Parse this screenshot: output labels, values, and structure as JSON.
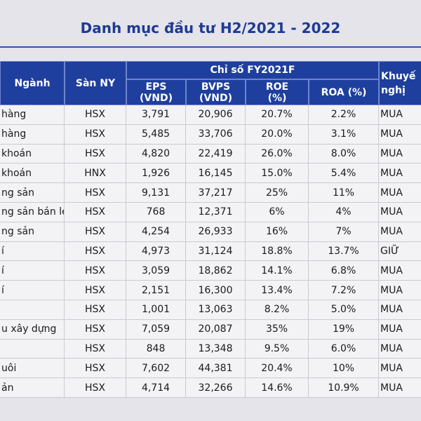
{
  "title": "Danh mục đầu tư H2/2021 - 2022",
  "table": {
    "header": {
      "sector": "Ngành",
      "exchange": "Sàn NY",
      "group": "Chỉ số FY2021F",
      "columns": [
        "EPS (VND)",
        "BVPS (VND)",
        "ROE (%)",
        "ROA (%)"
      ],
      "recommendation": [
        "Khuyế",
        "nghị"
      ]
    },
    "rows": [
      [
        "hàng",
        "HSX",
        "3,791",
        "20,906",
        "20.7%",
        "2.2%",
        "MUA"
      ],
      [
        "hàng",
        "HSX",
        "5,485",
        "33,706",
        "20.0%",
        "3.1%",
        "MUA"
      ],
      [
        "khoán",
        "HSX",
        "4,820",
        "22,419",
        "26.0%",
        "8.0%",
        "MUA"
      ],
      [
        "khoán",
        "HNX",
        "1,926",
        "16,145",
        "15.0%",
        "5.4%",
        "MUA"
      ],
      [
        "ng sản",
        "HSX",
        "9,131",
        "37,217",
        "25%",
        "11%",
        "MUA"
      ],
      [
        "ng sản bán lẻ",
        "HSX",
        "768",
        "12,371",
        "6%",
        "4%",
        "MUA"
      ],
      [
        "ng sản",
        "HSX",
        "4,254",
        "26,933",
        "16%",
        "7%",
        "MUA"
      ],
      [
        "í",
        "HSX",
        "4,973",
        "31,124",
        "18.8%",
        "13.7%",
        "GIỮ"
      ],
      [
        "í",
        "HSX",
        "3,059",
        "18,862",
        "14.1%",
        "6.8%",
        "MUA"
      ],
      [
        "í",
        "HSX",
        "2,151",
        "16,300",
        "13.4%",
        "7.2%",
        "MUA"
      ],
      [
        null,
        "HSX",
        "1,001",
        "13,063",
        "8.2%",
        "5.0%",
        "MUA"
      ],
      [
        "u xây dựng",
        "HSX",
        "7,059",
        "20,087",
        "35%",
        "19%",
        "MUA"
      ],
      [
        null,
        "HSX",
        "848",
        "13,348",
        "9.5%",
        "6.0%",
        "MUA"
      ],
      [
        "uôi",
        "HSX",
        "7,602",
        "44,381",
        "20.4%",
        "10%",
        "MUA"
      ],
      [
        "ản",
        "HSX",
        "4,714",
        "32,266",
        "14.6%",
        "10.9%",
        "MUA"
      ]
    ]
  }
}
